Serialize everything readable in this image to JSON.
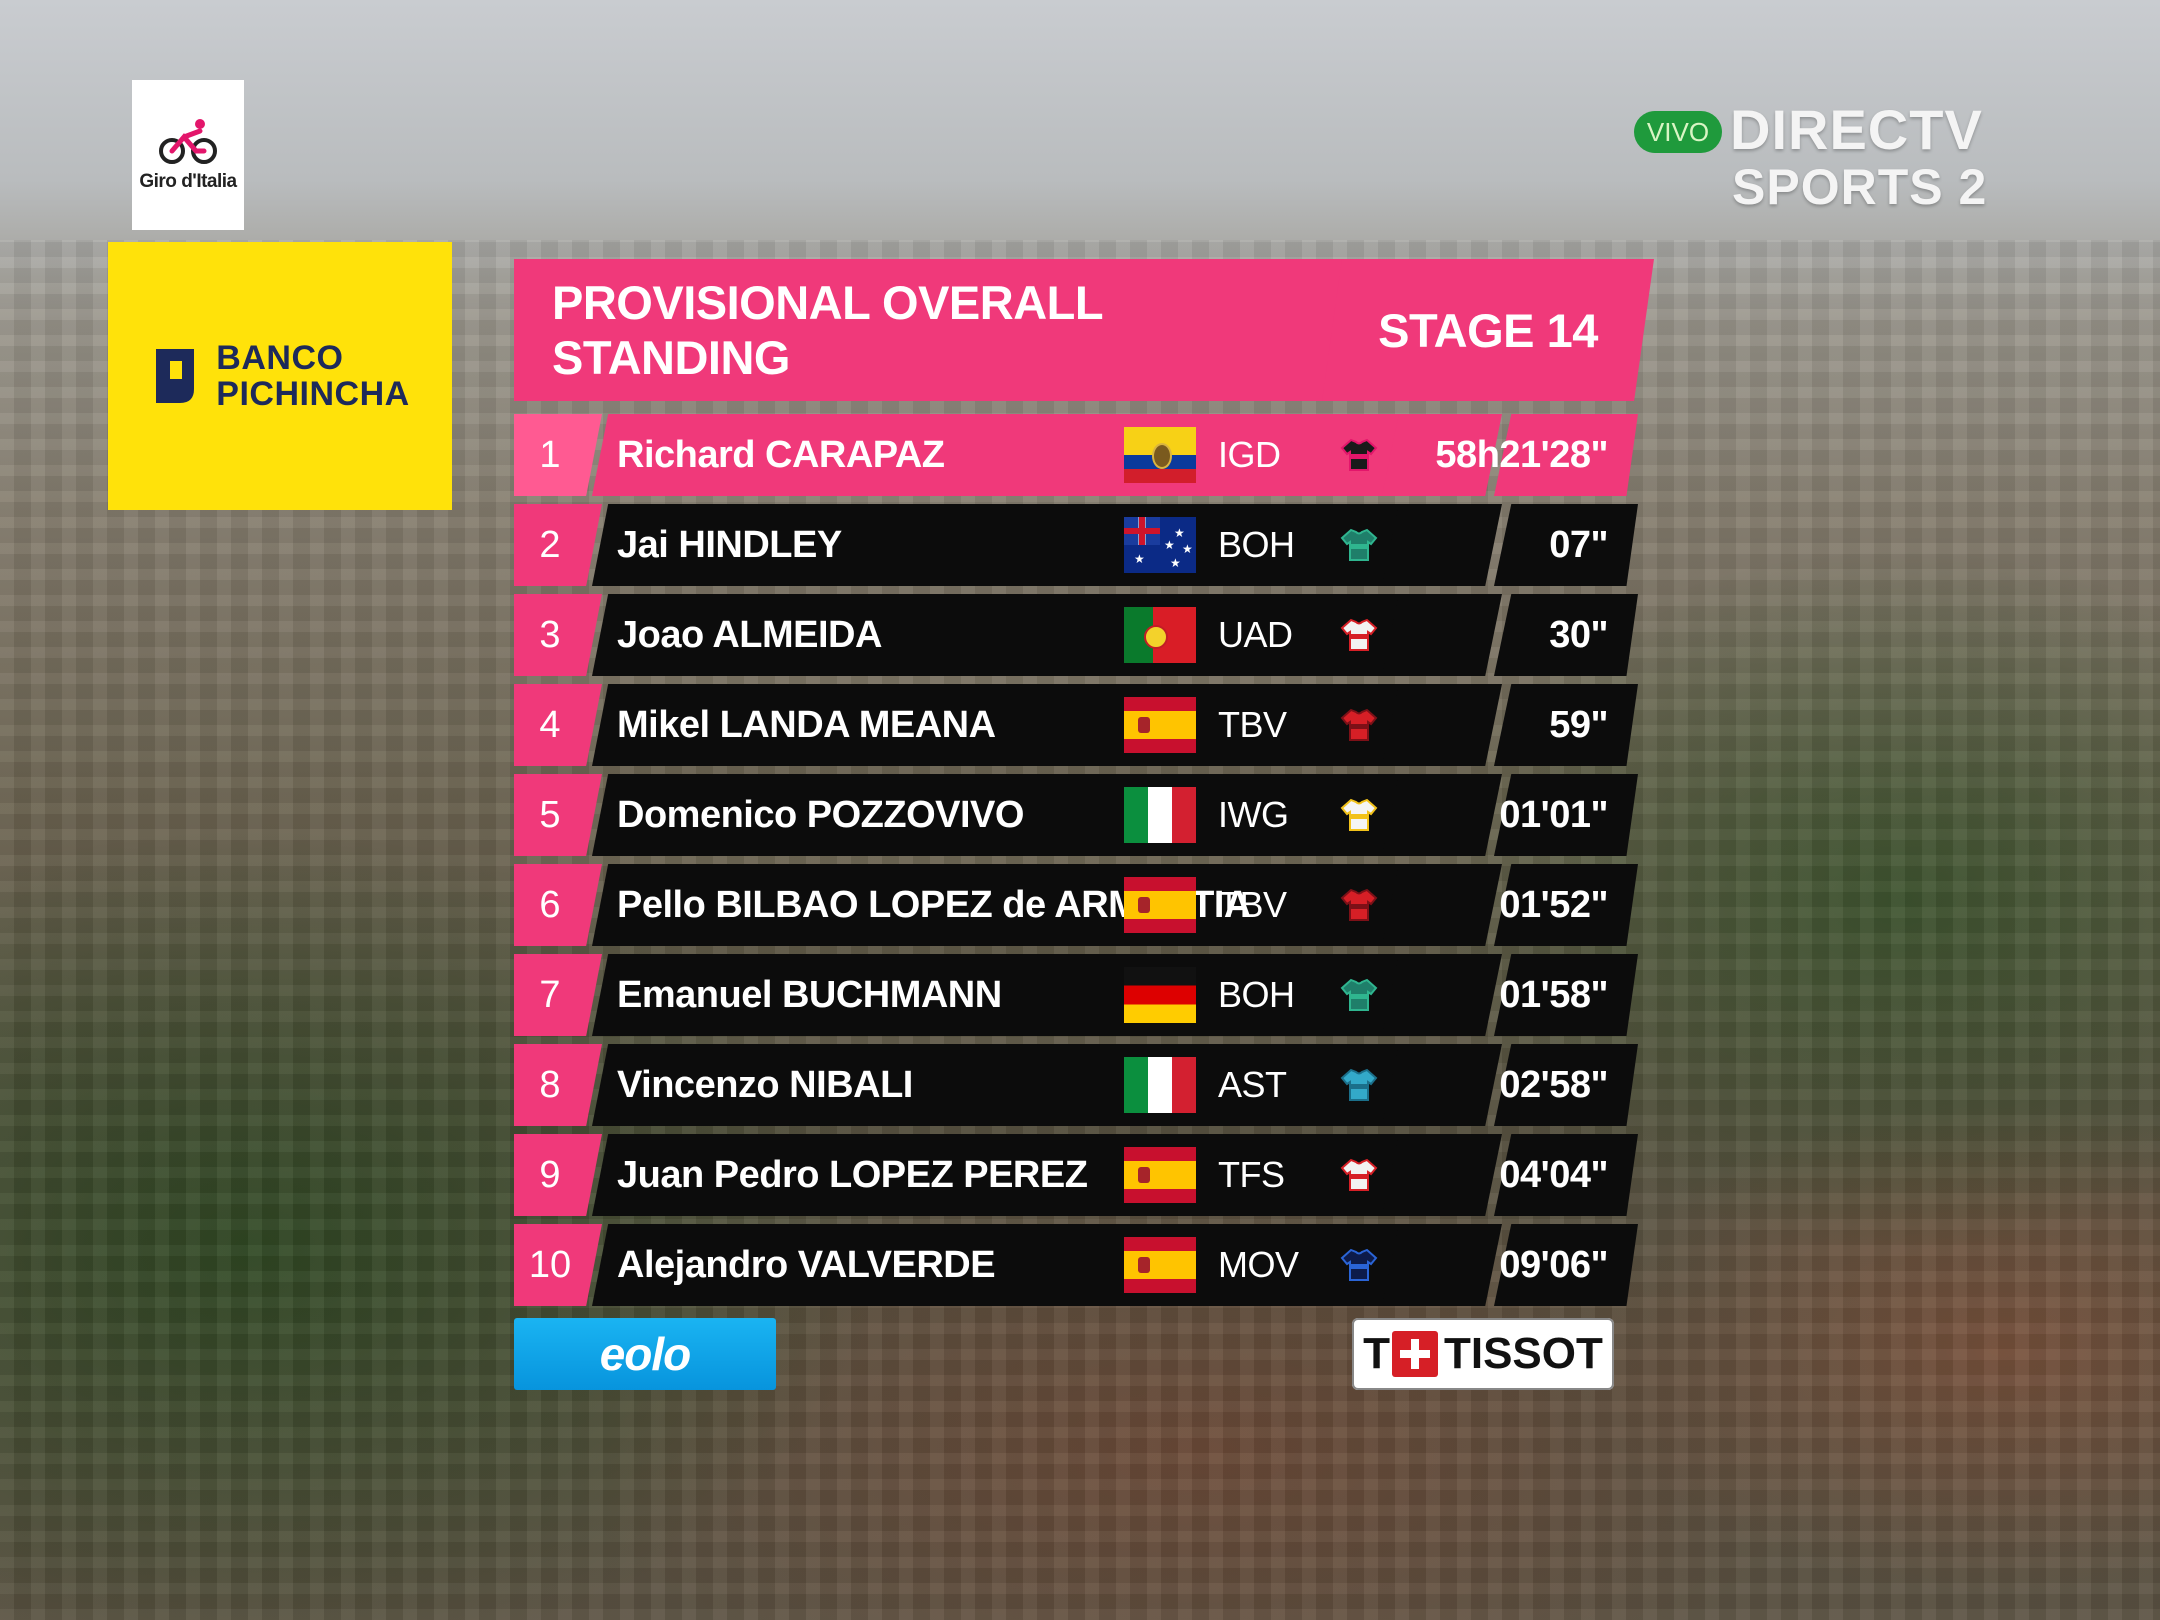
{
  "broadcast": {
    "race_logo_text": "Giro d'Italia",
    "sponsor_top": "BANCO PICHINCHA",
    "sponsor_top_line1": "BANCO",
    "sponsor_top_line2": "PICHINCHA",
    "live_badge": "VIVO",
    "channel_line1": "DIRECTV",
    "channel_line2": "SPORTS 2",
    "sponsor_bottom_left": "eolo",
    "sponsor_bottom_right": "TISSOT"
  },
  "header": {
    "title": "PROVISIONAL OVERALL STANDING",
    "stage": "STAGE 14"
  },
  "colors": {
    "accent_pink": "#f0397a",
    "row_dark": "#0c0c0c",
    "sponsor_yellow": "#ffe20a",
    "live_green": "#1f9a3c",
    "eolo_blue": "#0794dd",
    "tissot_red": "#d61f26"
  },
  "standings": [
    {
      "rank": "1",
      "name": "Richard CARAPAZ",
      "flag": "ecuador-flag",
      "team": "IGD",
      "jersey": "jersey-black-icon",
      "time": "58h21'28\"",
      "leader": true
    },
    {
      "rank": "2",
      "name": "Jai HINDLEY",
      "flag": "australia-flag",
      "team": "BOH",
      "jersey": "jersey-teal-icon",
      "time": "07\""
    },
    {
      "rank": "3",
      "name": "Joao ALMEIDA",
      "flag": "portugal-flag",
      "team": "UAD",
      "jersey": "jersey-white-red-icon",
      "time": "30\""
    },
    {
      "rank": "4",
      "name": "Mikel LANDA MEANA",
      "flag": "spain-flag",
      "team": "TBV",
      "jersey": "jersey-red-icon",
      "time": "59\""
    },
    {
      "rank": "5",
      "name": "Domenico POZZOVIVO",
      "flag": "italy-flag",
      "team": "IWG",
      "jersey": "jersey-white-yellow-icon",
      "time": "01'01\""
    },
    {
      "rank": "6",
      "name": "Pello BILBAO LOPEZ de ARMENTIA",
      "flag": "spain-flag",
      "team": "TBV",
      "jersey": "jersey-red-icon",
      "time": "01'52\""
    },
    {
      "rank": "7",
      "name": "Emanuel BUCHMANN",
      "flag": "germany-flag",
      "team": "BOH",
      "jersey": "jersey-teal-icon",
      "time": "01'58\""
    },
    {
      "rank": "8",
      "name": "Vincenzo NIBALI",
      "flag": "italy-flag",
      "team": "AST",
      "jersey": "jersey-turquoise-icon",
      "time": "02'58\""
    },
    {
      "rank": "9",
      "name": "Juan Pedro LOPEZ PEREZ",
      "flag": "spain-flag",
      "team": "TFS",
      "jersey": "jersey-white-red-icon",
      "time": "04'04\""
    },
    {
      "rank": "10",
      "name": "Alejandro VALVERDE",
      "flag": "spain-flag",
      "team": "MOV",
      "jersey": "jersey-navy-icon",
      "time": "09'06\""
    }
  ]
}
